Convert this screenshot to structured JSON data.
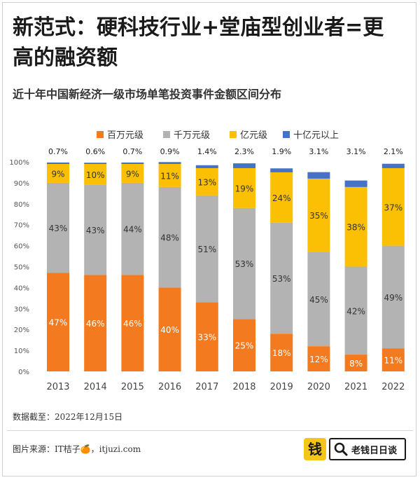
{
  "headline": "新范式：硬科技行业+堂庙型创业者=更高的融资额",
  "subtitle": "近十年中国新经济一级市场单笔投资事件金额区间分布",
  "source_date": "数据截至：2022年12月15日",
  "credit": "图片来源：IT桔子🍊，itjuzi.com",
  "brand": {
    "logo_char": "钱",
    "name": "老钱日日谈",
    "icon": "search-icon"
  },
  "chart_data": {
    "type": "stacked-bar",
    "title": "近十年中国新经济一级市场单笔投资事件金额区间分布",
    "categories": [
      "2013",
      "2014",
      "2015",
      "2016",
      "2017",
      "2018",
      "2019",
      "2020",
      "2021",
      "2022"
    ],
    "yticks": [
      "0%",
      "10%",
      "20%",
      "30%",
      "40%",
      "50%",
      "60%",
      "70%",
      "80%",
      "90%",
      "100%"
    ],
    "ylim": [
      0,
      100
    ],
    "series": [
      {
        "name": "百万元级",
        "color": "#f47a1f",
        "label_color": "#ffffff",
        "values": [
          47,
          46,
          46,
          40,
          33,
          25,
          18,
          12,
          8,
          11
        ],
        "labels": [
          "47%",
          "46%",
          "46%",
          "40%",
          "33%",
          "25%",
          "18%",
          "12%",
          "8%",
          "11%"
        ]
      },
      {
        "name": "千万元级",
        "color": "#b3b3b3",
        "label_color": "#333333",
        "values": [
          43,
          43,
          44,
          48,
          51,
          53,
          53,
          45,
          42,
          49
        ],
        "labels": [
          "43%",
          "43%",
          "44%",
          "48%",
          "51%",
          "53%",
          "53%",
          "45%",
          "42%",
          "49%"
        ]
      },
      {
        "name": "亿元级",
        "color": "#fbbf04",
        "label_color": "#333333",
        "values": [
          9,
          10,
          9,
          11,
          13,
          19,
          24,
          35,
          38,
          37
        ],
        "labels": [
          "9%",
          "10%",
          "9%",
          "11%",
          "13%",
          "19%",
          "24%",
          "35%",
          "38%",
          "37%"
        ]
      },
      {
        "name": "十亿元以上",
        "color": "#4472c4",
        "label_color": "#1a1a1a",
        "values": [
          0.7,
          0.6,
          0.7,
          0.9,
          1.4,
          2.3,
          1.9,
          3.1,
          3.1,
          2.1
        ],
        "labels": [
          "0.7%",
          "0.6%",
          "0.7%",
          "0.9%",
          "1.4%",
          "2.3%",
          "1.9%",
          "3.1%",
          "3.1%",
          "2.1%"
        ]
      }
    ],
    "legend_position": "top"
  }
}
